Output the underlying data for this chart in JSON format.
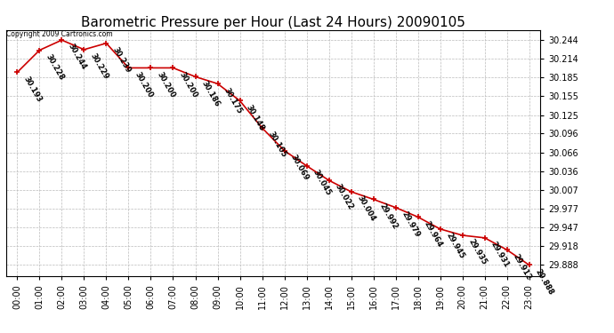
{
  "title": "Barometric Pressure per Hour (Last 24 Hours) 20090105",
  "copyright": "Copyright 2009 Cartronics.com",
  "hours": [
    "00:00",
    "01:00",
    "02:00",
    "03:00",
    "04:00",
    "05:00",
    "06:00",
    "07:00",
    "08:00",
    "09:00",
    "10:00",
    "11:00",
    "12:00",
    "13:00",
    "14:00",
    "15:00",
    "16:00",
    "17:00",
    "18:00",
    "19:00",
    "20:00",
    "21:00",
    "22:00",
    "23:00"
  ],
  "values": [
    30.193,
    30.228,
    30.244,
    30.229,
    30.239,
    30.2,
    30.2,
    30.2,
    30.186,
    30.175,
    30.148,
    30.105,
    30.069,
    30.045,
    30.022,
    30.004,
    29.992,
    29.979,
    29.964,
    29.945,
    29.935,
    29.931,
    29.912,
    29.888
  ],
  "line_color": "#cc0000",
  "marker_color": "#cc0000",
  "background_color": "#ffffff",
  "grid_color": "#bbbbbb",
  "title_fontsize": 11,
  "label_fontsize": 7,
  "annotation_fontsize": 6,
  "yticks": [
    29.888,
    29.918,
    29.947,
    29.977,
    30.007,
    30.036,
    30.066,
    30.096,
    30.125,
    30.155,
    30.185,
    30.214,
    30.244
  ],
  "ylim_min": 29.87,
  "ylim_max": 30.26,
  "annotation_rotation": -60
}
